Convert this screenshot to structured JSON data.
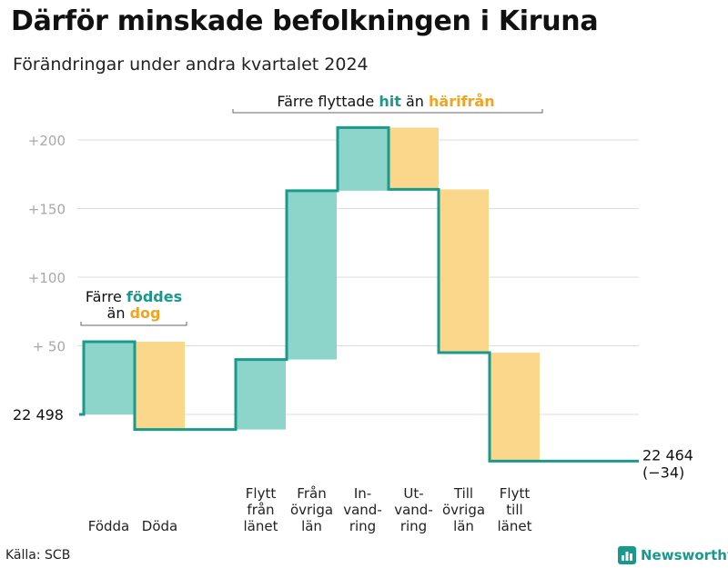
{
  "header": {
    "title": "Därför minskade befolkningen i Kiruna",
    "subtitle": "Förändringar under andra kvartalet 2024"
  },
  "colors": {
    "teal_fill": "#8dd4ca",
    "orange_fill": "#fbd78c",
    "teal_text": "#18998c",
    "orange_text": "#f3a320",
    "line": "#1a9a8c",
    "grid": "#dddddd",
    "axis_text": "#a8a8a8"
  },
  "annotations": {
    "births": {
      "line1": "Färre",
      "teal_word": "föddes",
      "line2": "än",
      "orange_word": "dog"
    },
    "moves": {
      "prefix": "Färre flyttade",
      "teal_word": "hit",
      "middle": "än",
      "orange_word": "härifrån"
    }
  },
  "chart_data": {
    "type": "waterfall",
    "title": "Därför minskade befolkningen i Kiruna",
    "subtitle": "Förändringar under andra kvartalet 2024",
    "start": {
      "label": "22  498",
      "value": 22498
    },
    "end": {
      "label": "22 464",
      "change_label": "(−34)",
      "value": 22464
    },
    "y_ticks": [
      {
        "label": "+200",
        "value": 200
      },
      {
        "label": "+150",
        "value": 150
      },
      {
        "label": "+100",
        "value": 100
      },
      {
        "label": "+  50",
        "value": 50
      }
    ],
    "ylim": [
      -40,
      215
    ],
    "grid": true,
    "steps": [
      {
        "category": [
          "Födda"
        ],
        "delta": 53,
        "kind": "inflow",
        "cumulative": 53
      },
      {
        "category": [
          "Döda"
        ],
        "delta": -64,
        "kind": "outflow",
        "cumulative": -11
      },
      {
        "category": [
          "Flytt",
          "från",
          "länet"
        ],
        "delta": 51,
        "kind": "inflow",
        "cumulative": 40
      },
      {
        "category": [
          "Från",
          "övriga",
          "län"
        ],
        "delta": 123,
        "kind": "inflow",
        "cumulative": 163
      },
      {
        "category": [
          "In-",
          "vand-",
          "ring"
        ],
        "delta": 46,
        "kind": "inflow",
        "cumulative": 209
      },
      {
        "category": [
          "Ut-",
          "vand-",
          "ring"
        ],
        "delta": -45,
        "kind": "outflow",
        "cumulative": 164
      },
      {
        "category": [
          "Till",
          "övriga",
          "län"
        ],
        "delta": -119,
        "kind": "outflow",
        "cumulative": 45
      },
      {
        "category": [
          "Flytt",
          "till",
          "länet"
        ],
        "delta": -79,
        "kind": "outflow",
        "cumulative": -34
      }
    ]
  },
  "footer": {
    "source": "Källa: SCB",
    "brand": "Newsworthy",
    "brand_icon": "bar-chart-logo-icon"
  }
}
